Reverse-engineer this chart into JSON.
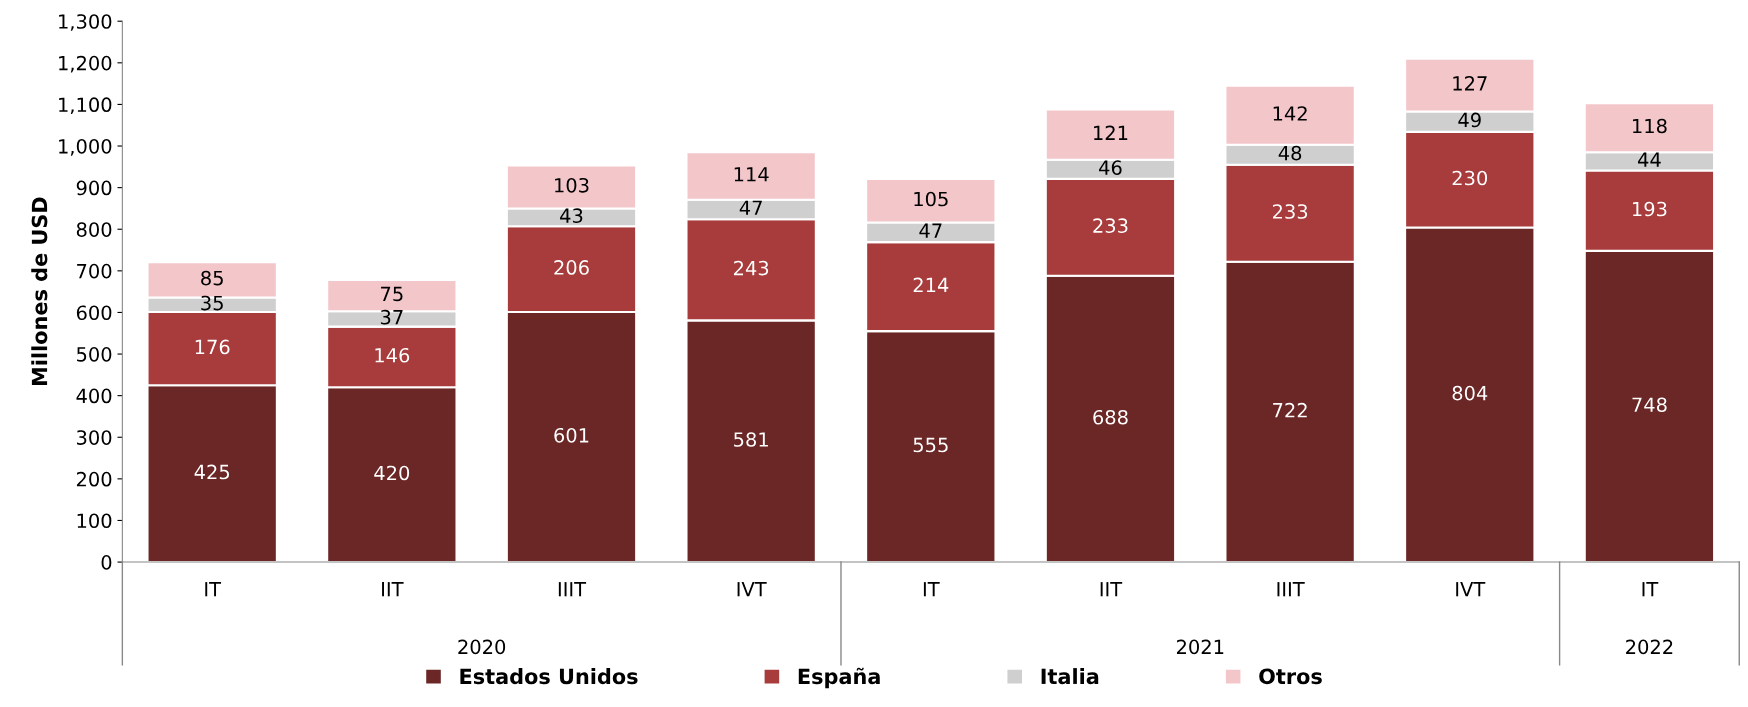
{
  "chart_data": {
    "type": "bar",
    "stacked": true,
    "ylabel": "Millones de USD",
    "categories": [
      "IT",
      "IIT",
      "IIIT",
      "IVT",
      "IT",
      "IIT",
      "IIIT",
      "IVT",
      "IT"
    ],
    "annotations": [
      "2020",
      "2021",
      "2022"
    ],
    "series": [
      {
        "name": "Estados Unidos",
        "color": "#6b2626",
        "values": [
          425,
          420,
          601,
          581,
          555,
          688,
          722,
          804,
          748
        ]
      },
      {
        "name": "España",
        "color": "#a83c3c",
        "values": [
          176,
          146,
          206,
          243,
          214,
          233,
          233,
          230,
          193
        ]
      },
      {
        "name": "Italia",
        "color": "#cfcfcf",
        "values": [
          35,
          37,
          43,
          47,
          47,
          46,
          48,
          49,
          44
        ]
      },
      {
        "name": "Otros",
        "color": "#f3c6ca",
        "values": [
          85,
          75,
          103,
          114,
          105,
          121,
          142,
          127,
          118
        ]
      }
    ],
    "ylim": [
      0,
      1300
    ],
    "yticks": [
      0,
      100,
      200,
      300,
      400,
      500,
      600,
      700,
      800,
      900,
      {
        "value": 1000,
        "label": "1,000"
      },
      {
        "value": 1100,
        "label": "1,100"
      },
      {
        "value": 1200,
        "label": "1,200"
      },
      {
        "value": 1300,
        "label": "1,300"
      }
    ],
    "data_labels": true,
    "legend": "bottom",
    "grid": false
  }
}
